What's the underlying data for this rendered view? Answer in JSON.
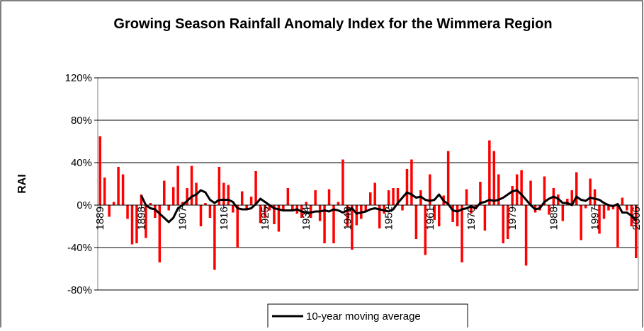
{
  "chart_data": {
    "type": "bar",
    "title": "Growing Season Rainfall Anomaly Index for the Wimmera Region",
    "y_label": "RAI",
    "categories": [
      "1889",
      null,
      null,
      null,
      null,
      null,
      null,
      null,
      null,
      "1898",
      null,
      null,
      null,
      null,
      null,
      null,
      null,
      null,
      "1907",
      null,
      null,
      null,
      null,
      null,
      null,
      null,
      null,
      "1916",
      null,
      null,
      null,
      null,
      null,
      null,
      null,
      null,
      "1925",
      null,
      null,
      null,
      null,
      null,
      null,
      null,
      null,
      "1934",
      null,
      null,
      null,
      null,
      null,
      null,
      null,
      null,
      "1943",
      null,
      null,
      null,
      null,
      null,
      null,
      null,
      null,
      "1952",
      null,
      null,
      null,
      null,
      null,
      null,
      null,
      null,
      "1961",
      null,
      null,
      null,
      null,
      null,
      null,
      null,
      null,
      "1970",
      null,
      null,
      null,
      null,
      null,
      null,
      null,
      null,
      "1979",
      null,
      null,
      null,
      null,
      null,
      null,
      null,
      null,
      "1988",
      null,
      null,
      null,
      null,
      null,
      null,
      null,
      null,
      "1997",
      null,
      null,
      null,
      null,
      null,
      null,
      null,
      null,
      "2006"
    ],
    "series": [
      {
        "type": "bar",
        "color": "#ff0000",
        "values": [
          65,
          26,
          -11,
          3,
          36,
          29,
          -13,
          -37,
          -36,
          10,
          -31,
          2,
          -12,
          -54,
          23,
          -5,
          17,
          37,
          3,
          16,
          37,
          21,
          -20,
          2,
          -12,
          -61,
          36,
          21,
          19,
          -7,
          -40,
          13,
          -3,
          8,
          32,
          -17,
          -12,
          -5,
          -18,
          -25,
          -5,
          16,
          -5,
          -8,
          -12,
          3,
          -12,
          14,
          -15,
          -36,
          15,
          -36,
          3,
          43,
          -20,
          -42,
          -19,
          -13,
          -6,
          12,
          21,
          -22,
          -8,
          14,
          16,
          16,
          -5,
          34,
          43,
          -32,
          14,
          -47,
          29,
          -14,
          -20,
          9,
          51,
          -16,
          -20,
          -54,
          15,
          -8,
          -4,
          22,
          -24,
          61,
          51,
          29,
          -36,
          -32,
          18,
          29,
          33,
          -57,
          23,
          -7,
          -5,
          27,
          -9,
          16,
          10,
          -15,
          6,
          14,
          31,
          -33,
          -3,
          25,
          15,
          -27,
          -13,
          -5,
          -4,
          -40,
          7,
          -5,
          -20,
          -50
        ]
      },
      {
        "type": "line",
        "name": "10-year moving average",
        "color": "#000000",
        "values": [
          null,
          null,
          null,
          null,
          null,
          null,
          null,
          null,
          null,
          9,
          0,
          -3,
          -4,
          -8,
          -12,
          -16,
          -12,
          -3,
          0,
          4,
          8,
          10,
          14,
          12,
          5,
          2,
          5,
          5,
          5,
          3,
          -3,
          -4,
          -4,
          -3,
          1,
          6,
          3,
          0,
          -3,
          -4,
          -5,
          -5,
          -5,
          -4,
          -6,
          -7,
          -7,
          -6,
          -6,
          -5,
          -6,
          -4,
          -5,
          -7,
          -5,
          -3,
          -8,
          -7,
          -6,
          -4,
          -3,
          -4,
          -5,
          -6,
          -4,
          2,
          7,
          12,
          10,
          7,
          8,
          5,
          4,
          5,
          10,
          4,
          1,
          -5,
          -6,
          -4,
          -3,
          -1,
          -3,
          2,
          3,
          5,
          4,
          5,
          7,
          10,
          13,
          14,
          10,
          5,
          0,
          -4,
          -3,
          3,
          6,
          8,
          6,
          2,
          2,
          0,
          8,
          5,
          4,
          7,
          6,
          5,
          2,
          0,
          -1,
          1,
          -7,
          -7,
          -10,
          -15
        ]
      }
    ],
    "ylim": [
      -80,
      120
    ],
    "yticks": [
      {
        "value": -80,
        "label": "-80%"
      },
      {
        "value": -40,
        "label": "-40%"
      },
      {
        "value": 0,
        "label": "0%"
      },
      {
        "value": 40,
        "label": "40%"
      },
      {
        "value": 80,
        "label": "80%"
      },
      {
        "value": 120,
        "label": "120%"
      }
    ],
    "grid": true,
    "legend": "bottom"
  }
}
